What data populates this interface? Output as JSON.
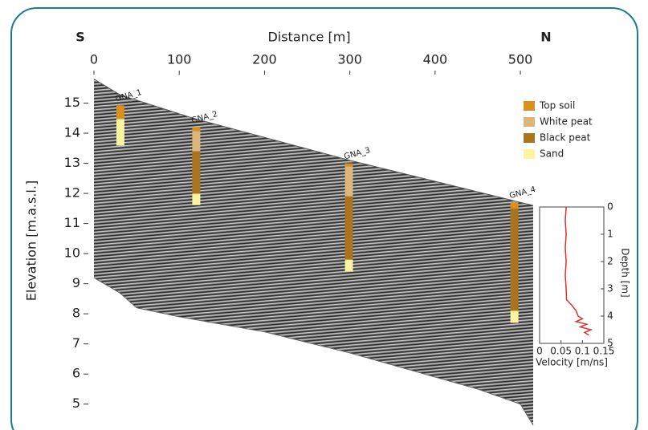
{
  "chart_data": [
    {
      "type": "radargram",
      "title": "Distance [m]",
      "ylabel": "Elevation [m.a.s.l.]",
      "left_label": "S",
      "right_label": "N",
      "xlim": [
        0,
        515
      ],
      "xticks": [
        0,
        100,
        200,
        300,
        400,
        500
      ],
      "ylim": [
        4.3,
        16
      ],
      "yticks": [
        5,
        6,
        7,
        8,
        9,
        10,
        11,
        12,
        13,
        14,
        15
      ],
      "profile_x": [
        0,
        31,
        116,
        300,
        493,
        515
      ],
      "surface": [
        15.8,
        15.27,
        14.5,
        13.1,
        11.75,
        11.6
      ],
      "base_x": [
        0,
        30,
        50,
        100,
        200,
        300,
        400,
        450,
        500,
        515
      ],
      "base": [
        9.2,
        8.7,
        8.2,
        7.9,
        7.4,
        6.7,
        5.9,
        5.5,
        5.0,
        4.3
      ],
      "boreholes": [
        {
          "name": "GNA_1",
          "x": 31
        },
        {
          "name": "GNA_2",
          "x": 120
        },
        {
          "name": "GNA_3",
          "x": 299
        },
        {
          "name": "GNA_4",
          "x": 493
        }
      ],
      "legend": "upper right",
      "series": [
        {
          "name": "Top soil",
          "color": "#d9901c",
          "values": [
            [
              14.92,
              14.47
            ],
            [
              14.2,
              14.07
            ],
            [
              13.0,
              12.9
            ],
            [
              11.7,
              11.5
            ]
          ]
        },
        {
          "name": "White peat",
          "color": "#dcb67a",
          "values": [
            null,
            [
              14.07,
              13.4
            ],
            [
              12.9,
              11.9
            ],
            null
          ]
        },
        {
          "name": "Black peat",
          "color": "#a8741f",
          "values": [
            null,
            [
              13.4,
              11.99
            ],
            [
              11.9,
              9.8
            ],
            [
              11.5,
              8.1
            ]
          ]
        },
        {
          "name": "Sand",
          "color": "#fbf5a0",
          "values": [
            [
              14.47,
              13.59
            ],
            [
              11.99,
              11.61
            ],
            [
              9.8,
              9.4
            ],
            [
              8.1,
              7.7
            ]
          ]
        }
      ]
    },
    {
      "type": "line",
      "xlabel": "Velocity [m/ns]",
      "ylabel": "Depth [m]",
      "xlim": [
        0,
        0.15
      ],
      "xticks": [
        0,
        0.05,
        0.1,
        0.15
      ],
      "ylim": [
        0,
        5
      ],
      "yticks": [
        0,
        1,
        2,
        3,
        4,
        5
      ],
      "y_inverted": true,
      "color": "#e0302a",
      "y": [
        0,
        0.5,
        1,
        1.5,
        2,
        2.5,
        3,
        3.4,
        3.6,
        3.8,
        4.0,
        4.1,
        4.2,
        4.3,
        4.4,
        4.5,
        4.6,
        4.7
      ],
      "x": [
        0.062,
        0.06,
        0.062,
        0.06,
        0.062,
        0.06,
        0.062,
        0.063,
        0.075,
        0.085,
        0.09,
        0.1,
        0.085,
        0.11,
        0.095,
        0.12,
        0.105,
        0.115
      ]
    }
  ]
}
